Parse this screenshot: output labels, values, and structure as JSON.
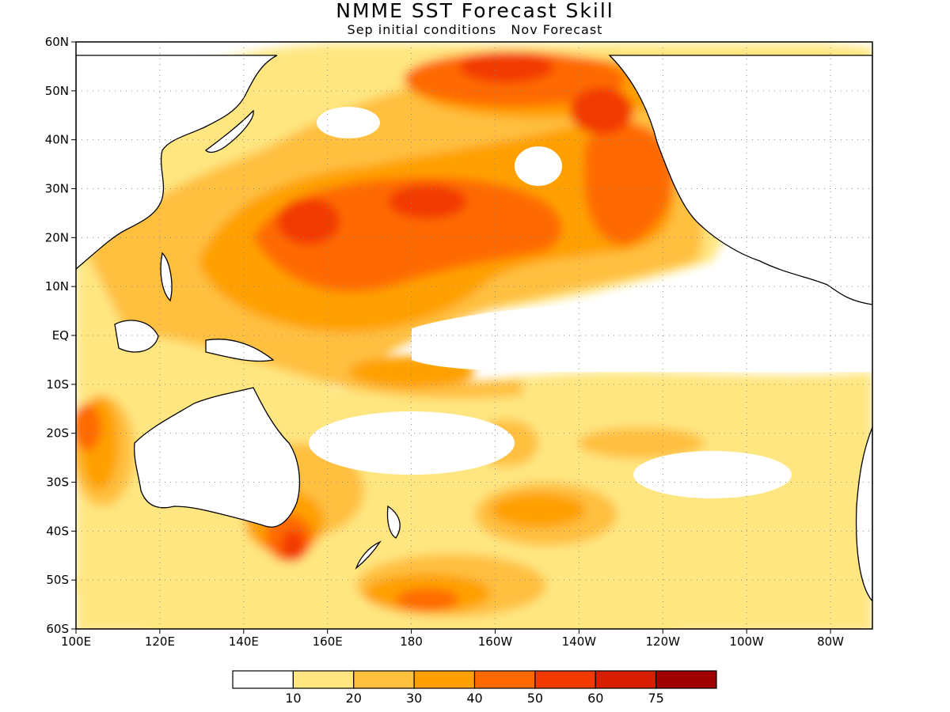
{
  "title": "NMME SST Forecast Skill",
  "subtitle": "Sep initial conditions   Nov Forecast",
  "map": {
    "lon_range": [
      100,
      290
    ],
    "lat_range": [
      -60,
      60
    ],
    "lat_ticks": [
      {
        "v": 60,
        "t": "60N"
      },
      {
        "v": 50,
        "t": "50N"
      },
      {
        "v": 40,
        "t": "40N"
      },
      {
        "v": 30,
        "t": "30N"
      },
      {
        "v": 20,
        "t": "20N"
      },
      {
        "v": 10,
        "t": "10N"
      },
      {
        "v": 0,
        "t": "EQ"
      },
      {
        "v": -10,
        "t": "10S"
      },
      {
        "v": -20,
        "t": "20S"
      },
      {
        "v": -30,
        "t": "30S"
      },
      {
        "v": -40,
        "t": "40S"
      },
      {
        "v": -50,
        "t": "50S"
      },
      {
        "v": -60,
        "t": "60S"
      }
    ],
    "lon_ticks": [
      {
        "v": 100,
        "t": "100E"
      },
      {
        "v": 120,
        "t": "120E"
      },
      {
        "v": 140,
        "t": "140E"
      },
      {
        "v": 160,
        "t": "160E"
      },
      {
        "v": 180,
        "t": "180"
      },
      {
        "v": 200,
        "t": "160W"
      },
      {
        "v": 220,
        "t": "140W"
      },
      {
        "v": 240,
        "t": "120W"
      },
      {
        "v": 260,
        "t": "100W"
      },
      {
        "v": 280,
        "t": "80W"
      }
    ]
  },
  "colorbar": {
    "colors": [
      "#ffffff",
      "#ffe680",
      "#ffc040",
      "#ffa000",
      "#ff6a00",
      "#f23a00",
      "#d91e00",
      "#a00000"
    ],
    "labels": [
      "10",
      "20",
      "30",
      "40",
      "50",
      "60",
      "75"
    ]
  }
}
